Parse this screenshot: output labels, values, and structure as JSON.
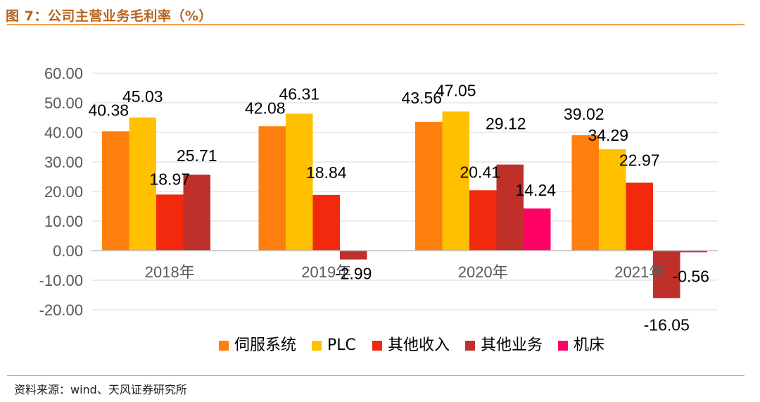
{
  "header": {
    "title": "图 7：公司主营业务毛利率（%）"
  },
  "footer": {
    "source": "资料来源：wind、天风证券研究所"
  },
  "colors": {
    "series": [
      "#ff7f0e",
      "#ffc000",
      "#f2290c",
      "#c0302a",
      "#ff0066"
    ],
    "rule": "#f0a050"
  },
  "chart_data": {
    "type": "bar",
    "title": "公司主营业务毛利率（%）",
    "categories": [
      "2018年",
      "2019年",
      "2020年",
      "2021年"
    ],
    "ylim": [
      -20,
      60
    ],
    "yticks": [
      60,
      50,
      40,
      30,
      20,
      10,
      0,
      -10,
      -20
    ],
    "ytick_labels": [
      "60.00",
      "50.00",
      "40.00",
      "30.00",
      "20.00",
      "10.00",
      "0.00",
      "-10.00",
      "-20.00"
    ],
    "legend_position": "bottom",
    "series": [
      {
        "name": "伺服系统",
        "values": [
          40.38,
          42.08,
          43.56,
          39.02
        ],
        "labels": [
          "40.38",
          "42.08",
          "43.56",
          "39.02"
        ]
      },
      {
        "name": "PLC",
        "values": [
          45.03,
          46.31,
          47.05,
          34.29
        ],
        "labels": [
          "45.03",
          "46.31",
          "47.05",
          "34.29"
        ]
      },
      {
        "name": "其他收入",
        "values": [
          18.97,
          18.84,
          20.41,
          22.97
        ],
        "labels": [
          "18.97",
          "18.84",
          "20.41",
          "22.97"
        ]
      },
      {
        "name": "其他业务",
        "values": [
          25.71,
          -2.99,
          29.12,
          -16.05
        ],
        "labels": [
          "25.71",
          "-2.99",
          "29.12",
          "-16.05"
        ]
      },
      {
        "name": "机床",
        "values": [
          null,
          null,
          14.24,
          -0.56
        ],
        "labels": [
          null,
          null,
          "14.24",
          "-0.56"
        ]
      }
    ]
  }
}
